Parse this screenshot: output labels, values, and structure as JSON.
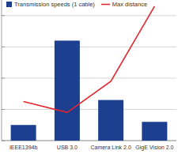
{
  "chart_data": {
    "type": "bar",
    "categories": [
      "IEEE1394b",
      "USB 3.0",
      "Camera Link 2.0",
      "GigE Vision 2.0"
    ],
    "series": [
      {
        "name": "Transmission speeds (1 cable)",
        "type": "bar",
        "color": "#1c3f8f",
        "values": [
          0.5,
          3.2,
          1.3,
          0.6
        ]
      },
      {
        "name": "Max distance",
        "type": "line",
        "color": "#e3262d",
        "values": [
          1.25,
          0.9,
          1.9,
          4.3
        ]
      }
    ],
    "ylim": [
      0,
      4.5
    ],
    "yticks": [
      0,
      1,
      2,
      3,
      4
    ],
    "grid": true,
    "legend": "top",
    "tick_labels": "x"
  }
}
